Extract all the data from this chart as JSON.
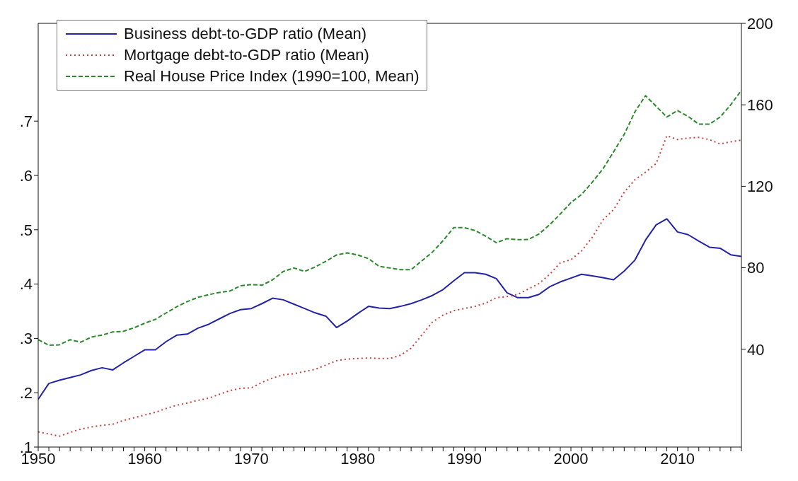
{
  "chart_data": {
    "type": "line",
    "x": [
      1950,
      1951,
      1952,
      1953,
      1954,
      1955,
      1956,
      1957,
      1958,
      1959,
      1960,
      1961,
      1962,
      1963,
      1964,
      1965,
      1966,
      1967,
      1968,
      1969,
      1970,
      1971,
      1972,
      1973,
      1974,
      1975,
      1976,
      1977,
      1978,
      1979,
      1980,
      1981,
      1982,
      1983,
      1984,
      1985,
      1986,
      1987,
      1988,
      1989,
      1990,
      1991,
      1992,
      1993,
      1994,
      1995,
      1996,
      1997,
      1998,
      1999,
      2000,
      2001,
      2002,
      2003,
      2004,
      2005,
      2006,
      2007,
      2008,
      2009,
      2010,
      2011,
      2012,
      2013,
      2014,
      2015,
      2016
    ],
    "series": [
      {
        "name": "Business debt-to-GDP ratio (Mean)",
        "color": "#2323a8",
        "line_style": "solid",
        "values": [
          0.188,
          0.217,
          0.223,
          0.228,
          0.233,
          0.241,
          0.246,
          0.242,
          0.255,
          0.267,
          0.279,
          0.279,
          0.294,
          0.306,
          0.308,
          0.319,
          0.326,
          0.336,
          0.346,
          0.353,
          0.355,
          0.364,
          0.374,
          0.371,
          0.363,
          0.355,
          0.347,
          0.341,
          0.32,
          0.332,
          0.346,
          0.359,
          0.356,
          0.355,
          0.359,
          0.364,
          0.371,
          0.379,
          0.39,
          0.406,
          0.421,
          0.421,
          0.418,
          0.41,
          0.384,
          0.375,
          0.375,
          0.381,
          0.395,
          0.404,
          0.411,
          0.418,
          0.415,
          0.412,
          0.408,
          0.424,
          0.444,
          0.481,
          0.509,
          0.52,
          0.496,
          0.491,
          0.479,
          0.468,
          0.466,
          0.454,
          0.451
        ]
      },
      {
        "name": "Mortgage debt-to-GDP ratio (Mean)",
        "color": "#c8403a",
        "line_style": "dotted",
        "values": [
          0.128,
          0.124,
          0.12,
          0.127,
          0.133,
          0.137,
          0.14,
          0.142,
          0.149,
          0.154,
          0.159,
          0.164,
          0.171,
          0.177,
          0.181,
          0.186,
          0.19,
          0.197,
          0.204,
          0.208,
          0.209,
          0.219,
          0.227,
          0.233,
          0.235,
          0.239,
          0.243,
          0.251,
          0.259,
          0.262,
          0.263,
          0.264,
          0.263,
          0.263,
          0.269,
          0.282,
          0.306,
          0.33,
          0.343,
          0.351,
          0.355,
          0.359,
          0.365,
          0.375,
          0.377,
          0.381,
          0.391,
          0.401,
          0.418,
          0.439,
          0.445,
          0.461,
          0.486,
          0.518,
          0.537,
          0.569,
          0.592,
          0.606,
          0.622,
          0.673,
          0.666,
          0.669,
          0.67,
          0.666,
          0.658,
          0.662,
          0.665
        ]
      },
      {
        "name": "Real House Price Index (1990=100, Mean)",
        "color": "#2a8a2a",
        "line_style": "dashed",
        "axis": "y2",
        "values": [
          44.7,
          42.0,
          42.2,
          44.7,
          43.5,
          46.0,
          47.0,
          48.5,
          48.8,
          50.6,
          52.8,
          54.7,
          57.8,
          60.9,
          63.4,
          65.5,
          66.8,
          67.9,
          68.6,
          71.2,
          71.8,
          71.4,
          74.1,
          78.2,
          79.9,
          78.2,
          80.4,
          83.2,
          86.3,
          87.3,
          86.3,
          84.5,
          80.7,
          79.9,
          79.1,
          79.1,
          83.4,
          87.7,
          93.3,
          99.7,
          99.7,
          98.3,
          95.5,
          92.3,
          94.3,
          93.8,
          93.9,
          96.6,
          101.1,
          106.4,
          112.0,
          116.0,
          122.0,
          128.5,
          136.9,
          145.5,
          156.5,
          164.5,
          159.3,
          154.0,
          157.2,
          154.3,
          150.5,
          150.5,
          154.0,
          160.0,
          167.1
        ]
      }
    ],
    "xlim": [
      1950,
      2016
    ],
    "xticks": [
      1950,
      {
        "value": 1951,
        "label": null
      },
      {
        "value": 1952,
        "label": null
      },
      {
        "value": 1953,
        "label": null
      },
      {
        "value": 1954,
        "label": null
      },
      {
        "value": 1955,
        "label": null
      },
      {
        "value": 1956,
        "label": null
      },
      {
        "value": 1957,
        "label": null
      },
      {
        "value": 1958,
        "label": null
      },
      {
        "value": 1959,
        "label": null
      },
      1960,
      {
        "value": 1961,
        "label": null
      },
      {
        "value": 1962,
        "label": null
      },
      {
        "value": 1963,
        "label": null
      },
      {
        "value": 1964,
        "label": null
      },
      {
        "value": 1965,
        "label": null
      },
      {
        "value": 1966,
        "label": null
      },
      {
        "value": 1967,
        "label": null
      },
      {
        "value": 1968,
        "label": null
      },
      {
        "value": 1969,
        "label": null
      },
      1970,
      {
        "value": 1971,
        "label": null
      },
      {
        "value": 1972,
        "label": null
      },
      {
        "value": 1973,
        "label": null
      },
      {
        "value": 1974,
        "label": null
      },
      {
        "value": 1975,
        "label": null
      },
      {
        "value": 1976,
        "label": null
      },
      {
        "value": 1977,
        "label": null
      },
      {
        "value": 1978,
        "label": null
      },
      {
        "value": 1979,
        "label": null
      },
      1980,
      {
        "value": 1981,
        "label": null
      },
      {
        "value": 1982,
        "label": null
      },
      {
        "value": 1983,
        "label": null
      },
      {
        "value": 1984,
        "label": null
      },
      {
        "value": 1985,
        "label": null
      },
      {
        "value": 1986,
        "label": null
      },
      {
        "value": 1987,
        "label": null
      },
      {
        "value": 1988,
        "label": null
      },
      {
        "value": 1989,
        "label": null
      },
      1990,
      {
        "value": 1991,
        "label": null
      },
      {
        "value": 1992,
        "label": null
      },
      {
        "value": 1993,
        "label": null
      },
      {
        "value": 1994,
        "label": null
      },
      {
        "value": 1995,
        "label": null
      },
      {
        "value": 1996,
        "label": null
      },
      {
        "value": 1997,
        "label": null
      },
      {
        "value": 1998,
        "label": null
      },
      {
        "value": 1999,
        "label": null
      },
      2000,
      {
        "value": 2001,
        "label": null
      },
      {
        "value": 2002,
        "label": null
      },
      {
        "value": 2003,
        "label": null
      },
      {
        "value": 2004,
        "label": null
      },
      {
        "value": 2005,
        "label": null
      },
      {
        "value": 2006,
        "label": null
      },
      {
        "value": 2007,
        "label": null
      },
      {
        "value": 2008,
        "label": null
      },
      {
        "value": 2009,
        "label": null
      },
      2010,
      {
        "value": 2011,
        "label": null
      },
      {
        "value": 2012,
        "label": null
      },
      {
        "value": 2013,
        "label": null
      },
      {
        "value": 2014,
        "label": null
      },
      {
        "value": 2015,
        "label": null
      },
      {
        "value": 2016,
        "label": null
      }
    ],
    "ylim": [
      0.1,
      0.88
    ],
    "yticks": [
      {
        "value": 0.1,
        "label": ".1"
      },
      {
        "value": 0.2,
        "label": ".2"
      },
      {
        "value": 0.3,
        "label": ".3"
      },
      {
        "value": 0.4,
        "label": ".4"
      },
      {
        "value": 0.5,
        "label": ".5"
      },
      {
        "value": 0.6,
        "label": ".6"
      },
      {
        "value": 0.7,
        "label": ".7"
      }
    ],
    "y2lim": [
      -8,
      200
    ],
    "y2ticks": [
      40,
      80,
      120,
      160,
      200
    ],
    "legend": "top left",
    "grid": false,
    "marker": "none"
  }
}
